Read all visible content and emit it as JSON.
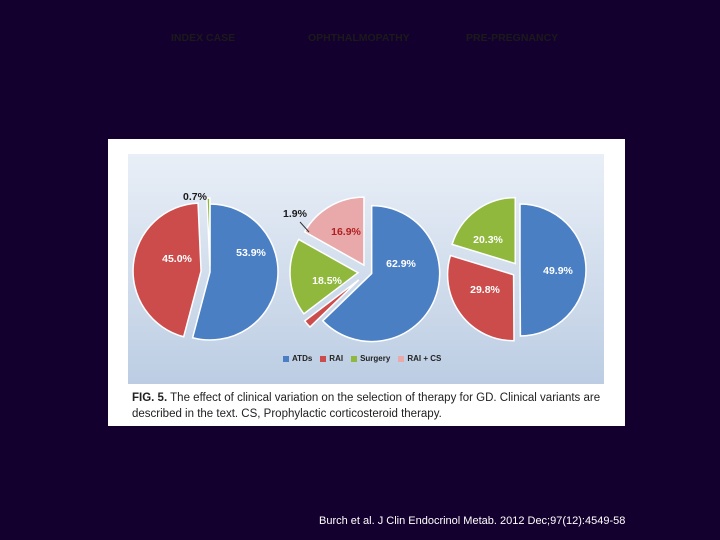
{
  "colors": {
    "ATDs": "#4a7fc4",
    "RAI": "#cc4c4c",
    "Surgery": "#8fb83c",
    "RAI + CS": "#e9a9ab"
  },
  "caption": {
    "label": "FIG. 5.",
    "text": "The effect of clinical variation on the selection of therapy for GD. Clinical variants are described in the text. CS, Prophylactic corticosteroid therapy."
  },
  "citation": "Burch et al. J Clin Endocrinol Metab. 2012 Dec;97(12):4549-58",
  "chart_data": [
    {
      "type": "pie",
      "title": "INDEX CASE",
      "labels": [
        "ATDs",
        "RAI",
        "Surgery"
      ],
      "values": [
        53.9,
        45.0,
        0.7
      ],
      "value_labels": [
        "53.9%",
        "45.0%",
        "0.7%"
      ]
    },
    {
      "type": "pie",
      "title": "OPHTHALMOPATHY",
      "labels": [
        "ATDs",
        "RAI",
        "Surgery",
        "RAI + CS"
      ],
      "values": [
        62.9,
        1.9,
        18.5,
        16.9
      ],
      "value_labels": [
        "62.9%",
        "1.9%",
        "18.5%",
        "16.9%"
      ]
    },
    {
      "type": "pie",
      "title": "PRE-PREGNANCY",
      "labels": [
        "ATDs",
        "RAI",
        "Surgery"
      ],
      "values": [
        49.9,
        29.8,
        20.3
      ],
      "value_labels": [
        "49.9%",
        "29.8%",
        "20.3%"
      ]
    }
  ],
  "legend": [
    {
      "label": "ATDs",
      "color": "#4a7fc4"
    },
    {
      "label": "RAI",
      "color": "#cc4c4c"
    },
    {
      "label": "Surgery",
      "color": "#8fb83c"
    },
    {
      "label": "RAI + CS",
      "color": "#e9a9ab"
    }
  ]
}
